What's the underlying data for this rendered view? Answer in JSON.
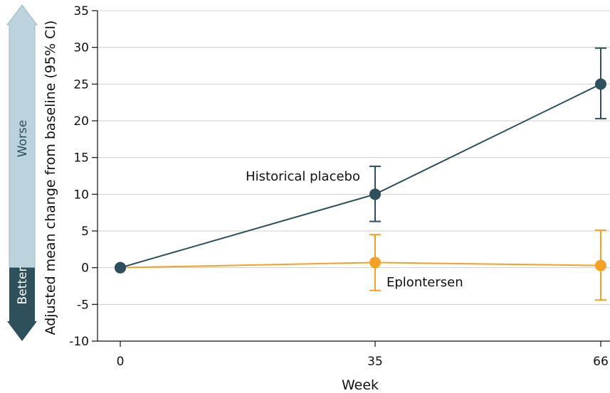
{
  "chart_data": {
    "type": "line",
    "xlabel": "Week",
    "ylabel": "Adjusted mean change from baseline (95% CI)",
    "x": [
      0,
      35,
      66
    ],
    "x_ticks": [
      "0",
      "35",
      "66"
    ],
    "ylim": [
      -10,
      35
    ],
    "y_ticks": [
      "35",
      "30",
      "25",
      "20",
      "15",
      "10",
      "5",
      "0",
      "-5",
      "-10"
    ],
    "grid": "horizontal",
    "series": [
      {
        "name": "Historical placebo",
        "color": "#2e4f5c",
        "values": [
          0,
          10,
          25
        ],
        "ci_lower": [
          null,
          6.3,
          20.3
        ],
        "ci_upper": [
          null,
          13.8,
          29.9
        ]
      },
      {
        "name": "Eplontersen",
        "color": "#f5a128",
        "values": [
          0,
          0.7,
          0.3
        ],
        "ci_lower": [
          null,
          -3.1,
          -4.4
        ],
        "ci_upper": [
          null,
          4.5,
          5.1
        ]
      }
    ],
    "direction_arrow": {
      "up_label": "Worse",
      "down_label": "Better",
      "up_color": "#bcd3de",
      "down_color": "#2e4f5c"
    }
  }
}
